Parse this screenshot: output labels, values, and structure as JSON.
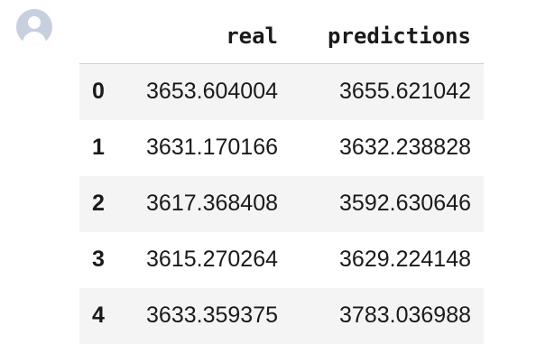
{
  "table": {
    "columns": [
      "real",
      "predictions"
    ],
    "rows": [
      {
        "index": "0",
        "real": "3653.604004",
        "predictions": "3655.621042"
      },
      {
        "index": "1",
        "real": "3631.170166",
        "predictions": "3632.238828"
      },
      {
        "index": "2",
        "real": "3617.368408",
        "predictions": "3592.630646"
      },
      {
        "index": "3",
        "real": "3615.270264",
        "predictions": "3629.224148"
      },
      {
        "index": "4",
        "real": "3633.359375",
        "predictions": "3783.036988"
      }
    ]
  },
  "colors": {
    "avatar_bg": "#c6d0df",
    "stripe": "#f4f4f4",
    "text": "#1a1a1a"
  },
  "icons": {
    "avatar": "user-avatar-icon"
  }
}
